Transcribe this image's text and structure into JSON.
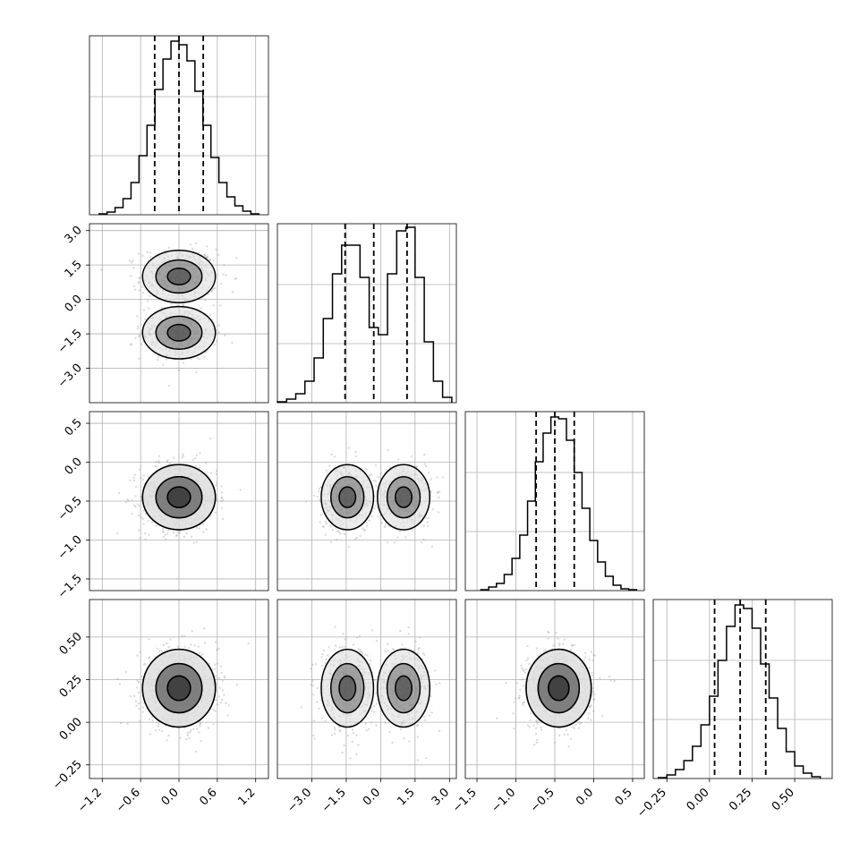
{
  "chart_data": {
    "type": "corner",
    "grid": true,
    "parameters": [
      {
        "id": "p0",
        "range": [
          -1.4,
          1.4
        ],
        "ticks": [
          -1.2,
          -0.6,
          0.0,
          0.6,
          1.2
        ],
        "tick_labels": [
          "−1.2",
          "−0.6",
          "0.0",
          "0.6",
          "1.2"
        ],
        "quantiles": [
          -0.38,
          0.0,
          0.38
        ],
        "hist": {
          "bin_edges": [
            -1.25,
            -1.125,
            -1.0,
            -0.875,
            -0.75,
            -0.625,
            -0.5,
            -0.375,
            -0.25,
            -0.125,
            0.0,
            0.125,
            0.25,
            0.375,
            0.5,
            0.625,
            0.75,
            0.875,
            1.0,
            1.125,
            1.25
          ],
          "heights": [
            0.005,
            0.015,
            0.04,
            0.09,
            0.18,
            0.33,
            0.5,
            0.7,
            0.87,
            0.97,
            0.95,
            0.86,
            0.69,
            0.5,
            0.32,
            0.18,
            0.1,
            0.05,
            0.02,
            0.005
          ]
        }
      },
      {
        "id": "p1",
        "range": [
          -4.5,
          3.3
        ],
        "ticks": [
          -3.0,
          -1.5,
          0.0,
          1.5,
          3.0
        ],
        "tick_labels": [
          "−3.0",
          "−1.5",
          "0.0",
          "1.5",
          "3.0"
        ],
        "quantiles": [
          -1.55,
          -0.3,
          1.15
        ],
        "hist": {
          "bin_edges": [
            -4.5,
            -4.1,
            -3.7,
            -3.3,
            -2.9,
            -2.5,
            -2.1,
            -1.7,
            -1.3,
            -0.9,
            -0.5,
            -0.1,
            0.3,
            0.7,
            1.1,
            1.5,
            1.9,
            2.3,
            2.7,
            3.1
          ],
          "heights": [
            0.005,
            0.02,
            0.05,
            0.12,
            0.25,
            0.47,
            0.72,
            0.88,
            0.88,
            0.7,
            0.42,
            0.38,
            0.72,
            0.96,
            0.98,
            0.7,
            0.34,
            0.12,
            0.03
          ]
        }
      },
      {
        "id": "p2",
        "range": [
          -1.65,
          0.65
        ],
        "ticks": [
          -1.5,
          -1.0,
          -0.5,
          0.0,
          0.5
        ],
        "tick_labels": [
          "−1.5",
          "−1.0",
          "−0.5",
          "0.0",
          "0.5"
        ],
        "quantiles": [
          -0.74,
          -0.5,
          -0.25
        ],
        "hist": {
          "bin_edges": [
            -1.45,
            -1.35,
            -1.25,
            -1.15,
            -1.05,
            -0.95,
            -0.85,
            -0.75,
            -0.65,
            -0.55,
            -0.45,
            -0.35,
            -0.25,
            -0.15,
            -0.05,
            0.05,
            0.15,
            0.25,
            0.35,
            0.45,
            0.55
          ],
          "heights": [
            0.005,
            0.02,
            0.04,
            0.09,
            0.18,
            0.31,
            0.5,
            0.72,
            0.88,
            0.97,
            0.96,
            0.84,
            0.66,
            0.46,
            0.28,
            0.16,
            0.08,
            0.03,
            0.01,
            0.005
          ]
        }
      },
      {
        "id": "p3",
        "range": [
          -0.33,
          0.72
        ],
        "ticks": [
          -0.25,
          0.0,
          0.25,
          0.5
        ],
        "tick_labels": [
          "−0.25",
          "0.00",
          "0.25",
          "0.50"
        ],
        "quantiles": [
          0.03,
          0.18,
          0.33
        ],
        "hist": {
          "bin_edges": [
            -0.3,
            -0.25,
            -0.2,
            -0.15,
            -0.1,
            -0.05,
            0.0,
            0.05,
            0.1,
            0.15,
            0.2,
            0.25,
            0.3,
            0.35,
            0.4,
            0.45,
            0.5,
            0.55,
            0.6,
            0.65
          ],
          "heights": [
            0.005,
            0.02,
            0.05,
            0.1,
            0.18,
            0.3,
            0.46,
            0.66,
            0.85,
            0.97,
            0.95,
            0.84,
            0.64,
            0.45,
            0.28,
            0.15,
            0.07,
            0.03,
            0.01
          ]
        }
      }
    ],
    "modes": {
      "p0": [
        [
          0.0
        ],
        [
          0.0
        ]
      ],
      "p1": [
        [
          -1.45
        ],
        [
          1.0
        ]
      ],
      "p2": [
        [
          -0.45
        ],
        [
          -0.45
        ]
      ],
      "p3": [
        [
          0.2
        ],
        [
          0.2
        ]
      ]
    }
  }
}
